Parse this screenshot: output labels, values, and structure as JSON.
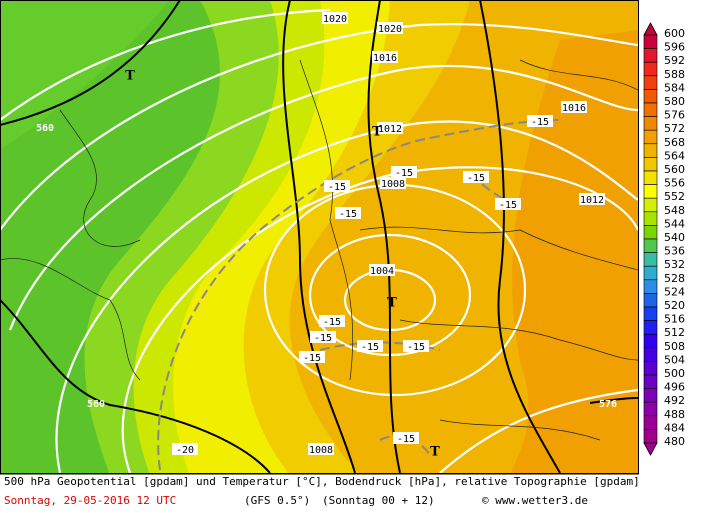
{
  "map": {
    "labels": [
      "1020",
      "1020",
      "1016",
      "1016",
      "1012",
      "1012",
      "1008",
      "1004",
      "1008",
      "560",
      "560",
      "576",
      "-15",
      "-15",
      "-15",
      "-15",
      "-15",
      "-15",
      "-15",
      "-15",
      "-15",
      "-15",
      "-15",
      "-15",
      "-20",
      "T",
      "T",
      "T",
      "T"
    ],
    "colorbar": {
      "labels": [
        "600",
        "596",
        "592",
        "588",
        "584",
        "580",
        "576",
        "572",
        "568",
        "564",
        "560",
        "556",
        "552",
        "548",
        "544",
        "540",
        "536",
        "532",
        "528",
        "524",
        "520",
        "516",
        "512",
        "508",
        "504",
        "500",
        "496",
        "492",
        "488",
        "484",
        "480"
      ],
      "colors": [
        "#c8003c",
        "#e01830",
        "#f02820",
        "#f04010",
        "#f05a00",
        "#f07000",
        "#f08800",
        "#f0a000",
        "#f0b400",
        "#f0c800",
        "#f5e100",
        "#ffff00",
        "#d2f000",
        "#a8e400",
        "#7cd400",
        "#50c850",
        "#3cbca0",
        "#30acd0",
        "#2c8ce6",
        "#1e64e6",
        "#1440f0",
        "#2020f0",
        "#3200f0",
        "#4600e0",
        "#5a00d0",
        "#6c00c4",
        "#7c00b8",
        "#8c00a8",
        "#9c0098",
        "#a0008c"
      ]
    },
    "footer": {
      "line1": "500 hPa Geopotential [gpdam] und Temperatur [°C], Bodendruck [hPa], relative Topographie [gpdam]",
      "date": "Sonntag, 29-05-2016  12 UTC",
      "model": "(GFS 0.5°)",
      "run": "(Sonntag 00 + 12)",
      "credit": "© www.wetter3.de"
    }
  }
}
